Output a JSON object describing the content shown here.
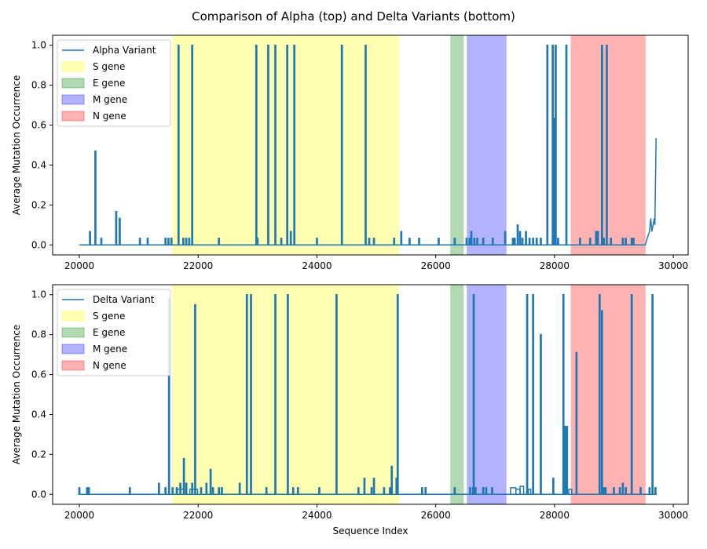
{
  "figure": {
    "title": "Comparison of Alpha (top) and Delta Variants (bottom)"
  },
  "chart_data": [
    {
      "type": "line",
      "panel": "top",
      "xlabel": "",
      "ylabel": "Average Mutation Occurrence",
      "xlim": [
        19550,
        30250
      ],
      "ylim": [
        -0.05,
        1.05
      ],
      "xticks": [
        20000,
        22000,
        24000,
        26000,
        28000,
        30000
      ],
      "yticks": [
        0.0,
        0.2,
        0.4,
        0.6,
        0.8,
        1.0
      ],
      "xtick_labels": [
        "20000",
        "22000",
        "24000",
        "26000",
        "28000",
        "30000"
      ],
      "ytick_labels": [
        "0.0",
        "0.2",
        "0.4",
        "0.6",
        "0.8",
        "1.0"
      ],
      "grid": false,
      "legend_position": "top-left",
      "regions": [
        {
          "name": "S gene",
          "start": 21563,
          "end": 25384,
          "color": "#ffff00",
          "alpha": 0.3
        },
        {
          "name": "E gene",
          "start": 26245,
          "end": 26472,
          "color": "#008000",
          "alpha": 0.3
        },
        {
          "name": "M gene",
          "start": 26523,
          "end": 27191,
          "color": "#0000ff",
          "alpha": 0.3
        },
        {
          "name": "N gene",
          "start": 28274,
          "end": 29533,
          "color": "#ff0000",
          "alpha": 0.3
        }
      ],
      "series": [
        {
          "name": "Alpha Variant",
          "color": "#1f77b4",
          "baseline_start": 20000,
          "baseline_end": 29530,
          "spikes": [
            [
              20180,
              0.067
            ],
            [
              20270,
              0.47
            ],
            [
              20370,
              0.033
            ],
            [
              20620,
              0.167
            ],
            [
              20680,
              0.133
            ],
            [
              21020,
              0.033
            ],
            [
              21150,
              0.033
            ],
            [
              21450,
              0.033
            ],
            [
              21500,
              0.033
            ],
            [
              21550,
              0.033
            ],
            [
              21670,
              1.0
            ],
            [
              21750,
              0.033
            ],
            [
              21800,
              0.033
            ],
            [
              21850,
              0.033
            ],
            [
              21900,
              1.0
            ],
            [
              22350,
              0.033
            ],
            [
              22980,
              1.0
            ],
            [
              23000,
              0.033
            ],
            [
              23180,
              1.0
            ],
            [
              23300,
              1.0
            ],
            [
              23400,
              0.033
            ],
            [
              23500,
              1.0
            ],
            [
              23560,
              0.067
            ],
            [
              23620,
              1.0
            ],
            [
              24000,
              0.033
            ],
            [
              24420,
              1.0
            ],
            [
              24820,
              1.0
            ],
            [
              24880,
              0.033
            ],
            [
              24960,
              0.033
            ],
            [
              25300,
              0.033
            ],
            [
              25420,
              0.067
            ],
            [
              25560,
              0.033
            ],
            [
              25720,
              0.033
            ],
            [
              26050,
              0.033
            ],
            [
              26320,
              0.033
            ],
            [
              26520,
              0.033
            ],
            [
              26570,
              0.033
            ],
            [
              26600,
              0.067
            ],
            [
              26650,
              0.033
            ],
            [
              26700,
              0.033
            ],
            [
              26800,
              0.033
            ],
            [
              26960,
              0.033
            ],
            [
              27170,
              0.067
            ],
            [
              27300,
              0.033
            ],
            [
              27330,
              0.033
            ],
            [
              27380,
              0.1
            ],
            [
              27420,
              0.067
            ],
            [
              27460,
              0.033
            ],
            [
              27520,
              0.067
            ],
            [
              27580,
              0.033
            ],
            [
              27640,
              0.033
            ],
            [
              27700,
              0.033
            ],
            [
              27770,
              0.033
            ],
            [
              27880,
              1.0
            ],
            [
              27970,
              1.0
            ],
            [
              28000,
              0.633
            ],
            [
              28020,
              1.0
            ],
            [
              28060,
              0.033
            ],
            [
              28200,
              1.0
            ],
            [
              28430,
              0.033
            ],
            [
              28600,
              0.033
            ],
            [
              28700,
              0.067
            ],
            [
              28730,
              0.067
            ],
            [
              28800,
              1.0
            ],
            [
              28830,
              0.033
            ],
            [
              28880,
              1.0
            ],
            [
              28950,
              0.033
            ],
            [
              29150,
              0.033
            ],
            [
              29200,
              0.033
            ],
            [
              29300,
              0.033
            ],
            [
              29330,
              0.033
            ]
          ],
          "tail": [
            [
              29530,
              0.0
            ],
            [
              29560,
              0.033
            ],
            [
              29600,
              0.067
            ],
            [
              29620,
              0.133
            ],
            [
              29640,
              0.067
            ],
            [
              29660,
              0.1
            ],
            [
              29680,
              0.133
            ],
            [
              29690,
              0.1
            ],
            [
              29710,
              0.533
            ],
            [
              29720,
              0.533
            ]
          ]
        }
      ]
    },
    {
      "type": "line",
      "panel": "bottom",
      "xlabel": "Sequence Index",
      "ylabel": "Average Mutation Occurrence",
      "xlim": [
        19550,
        30250
      ],
      "ylim": [
        -0.05,
        1.05
      ],
      "xticks": [
        20000,
        22000,
        24000,
        26000,
        28000,
        30000
      ],
      "yticks": [
        0.0,
        0.2,
        0.4,
        0.6,
        0.8,
        1.0
      ],
      "xtick_labels": [
        "20000",
        "22000",
        "24000",
        "26000",
        "28000",
        "30000"
      ],
      "ytick_labels": [
        "0.0",
        "0.2",
        "0.4",
        "0.6",
        "0.8",
        "1.0"
      ],
      "grid": false,
      "legend_position": "top-left",
      "regions": [
        {
          "name": "S gene",
          "start": 21563,
          "end": 25384,
          "color": "#ffff00",
          "alpha": 0.3
        },
        {
          "name": "E gene",
          "start": 26245,
          "end": 26472,
          "color": "#008000",
          "alpha": 0.3
        },
        {
          "name": "M gene",
          "start": 26523,
          "end": 27191,
          "color": "#0000ff",
          "alpha": 0.3
        },
        {
          "name": "N gene",
          "start": 28274,
          "end": 29533,
          "color": "#ff0000",
          "alpha": 0.3
        }
      ],
      "series": [
        {
          "name": "Delta Variant",
          "color": "#1f77b4",
          "baseline_start": 20000,
          "baseline_end": 29720,
          "spikes": [
            [
              20000,
              0.033
            ],
            [
              20130,
              0.033
            ],
            [
              20160,
              0.033
            ],
            [
              20850,
              0.033
            ],
            [
              21340,
              0.055
            ],
            [
              21450,
              0.033
            ],
            [
              21510,
              0.98
            ],
            [
              21570,
              0.033
            ],
            [
              21640,
              0.033
            ],
            [
              21700,
              0.055
            ],
            [
              21760,
              0.18
            ],
            [
              21800,
              0.055
            ],
            [
              21900,
              0.055
            ],
            [
              21950,
              0.95
            ],
            [
              22050,
              0.033
            ],
            [
              22140,
              0.055
            ],
            [
              22210,
              0.125
            ],
            [
              22250,
              0.033
            ],
            [
              22350,
              0.033
            ],
            [
              22400,
              0.033
            ],
            [
              22700,
              0.055
            ],
            [
              22820,
              1.0
            ],
            [
              22890,
              1.0
            ],
            [
              23150,
              0.033
            ],
            [
              23300,
              1.0
            ],
            [
              23510,
              1.0
            ],
            [
              23600,
              0.033
            ],
            [
              23680,
              0.033
            ],
            [
              24040,
              0.033
            ],
            [
              24330,
              1.0
            ],
            [
              24700,
              0.033
            ],
            [
              24800,
              0.08
            ],
            [
              24920,
              0.033
            ],
            [
              24960,
              0.08
            ],
            [
              25130,
              0.033
            ],
            [
              25230,
              0.033
            ],
            [
              25260,
              0.14
            ],
            [
              25340,
              0.08
            ],
            [
              25360,
              1.0
            ],
            [
              25770,
              0.033
            ],
            [
              25830,
              0.033
            ],
            [
              26320,
              0.033
            ],
            [
              26580,
              0.033
            ],
            [
              26630,
              0.033
            ],
            [
              26640,
              1.0
            ],
            [
              26670,
              0.033
            ],
            [
              26800,
              0.033
            ],
            [
              26850,
              0.033
            ],
            [
              26950,
              0.033
            ],
            [
              27540,
              1.0
            ],
            [
              27640,
              1.0
            ],
            [
              27770,
              0.8
            ],
            [
              27980,
              0.08
            ],
            [
              28150,
              1.0
            ],
            [
              28180,
              0.34
            ],
            [
              28210,
              0.34
            ],
            [
              28370,
              0.71
            ],
            [
              28760,
              1.0
            ],
            [
              28800,
              0.92
            ],
            [
              28830,
              0.033
            ],
            [
              28860,
              0.033
            ],
            [
              29000,
              0.033
            ],
            [
              29100,
              0.033
            ],
            [
              29150,
              0.055
            ],
            [
              29200,
              0.033
            ],
            [
              29300,
              1.0
            ],
            [
              29450,
              0.033
            ],
            [
              29600,
              0.033
            ],
            [
              29650,
              1.0
            ],
            [
              29700,
              0.033
            ]
          ],
          "steps": [
            [
              21650,
              21760,
              0.025
            ],
            [
              21860,
              21990,
              0.025
            ],
            [
              27260,
              27350,
              0.033
            ],
            [
              27350,
              27420,
              0.025
            ],
            [
              27420,
              27480,
              0.04
            ],
            [
              27560,
              27600,
              0.025
            ],
            [
              28240,
              28290,
              0.025
            ]
          ]
        }
      ]
    }
  ]
}
